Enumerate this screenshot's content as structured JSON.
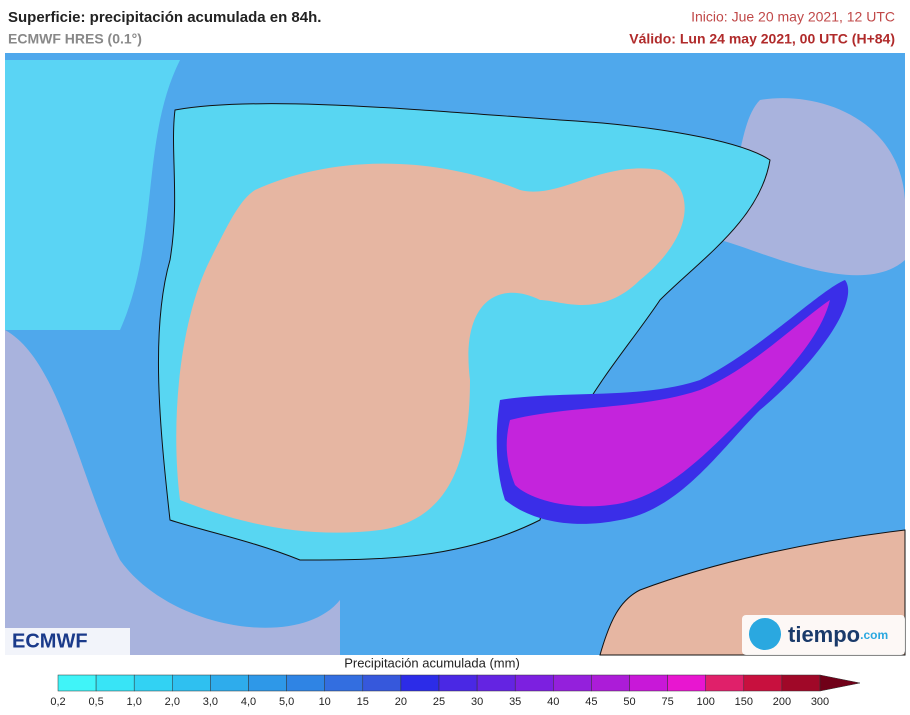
{
  "header": {
    "title": "Superficie: precipitación acumulada en 84h.",
    "subtitle": "ECMWF HRES (0.1°)",
    "init": "Inicio: Jue 20 may 2021, 12 UTC",
    "valid": "Válido: Lun 24 may 2021, 00 UTC (H+84)"
  },
  "logos": {
    "left": "ECMWF",
    "right_main": "tiempo",
    "right_suffix": ".com"
  },
  "legend": {
    "title": "Precipitación acumulada (mm)",
    "labels": [
      "0,2",
      "0,5",
      "1,0",
      "2,0",
      "3,0",
      "4,0",
      "5,0",
      "10",
      "15",
      "20",
      "25",
      "30",
      "35",
      "40",
      "45",
      "50",
      "75",
      "100",
      "150",
      "200",
      "300"
    ],
    "colors": [
      "#40f4f8",
      "#38e4f6",
      "#32d2f3",
      "#2fc0f0",
      "#2eacec",
      "#2e98e8",
      "#2f84e4",
      "#336ee0",
      "#3658dc",
      "#2c2ce8",
      "#4a28e4",
      "#6424e2",
      "#7c20e0",
      "#9420dc",
      "#ac1cd8",
      "#c818d8",
      "#e816d0",
      "#e0206a",
      "#c8103e",
      "#a00828",
      "#700018"
    ]
  }
}
